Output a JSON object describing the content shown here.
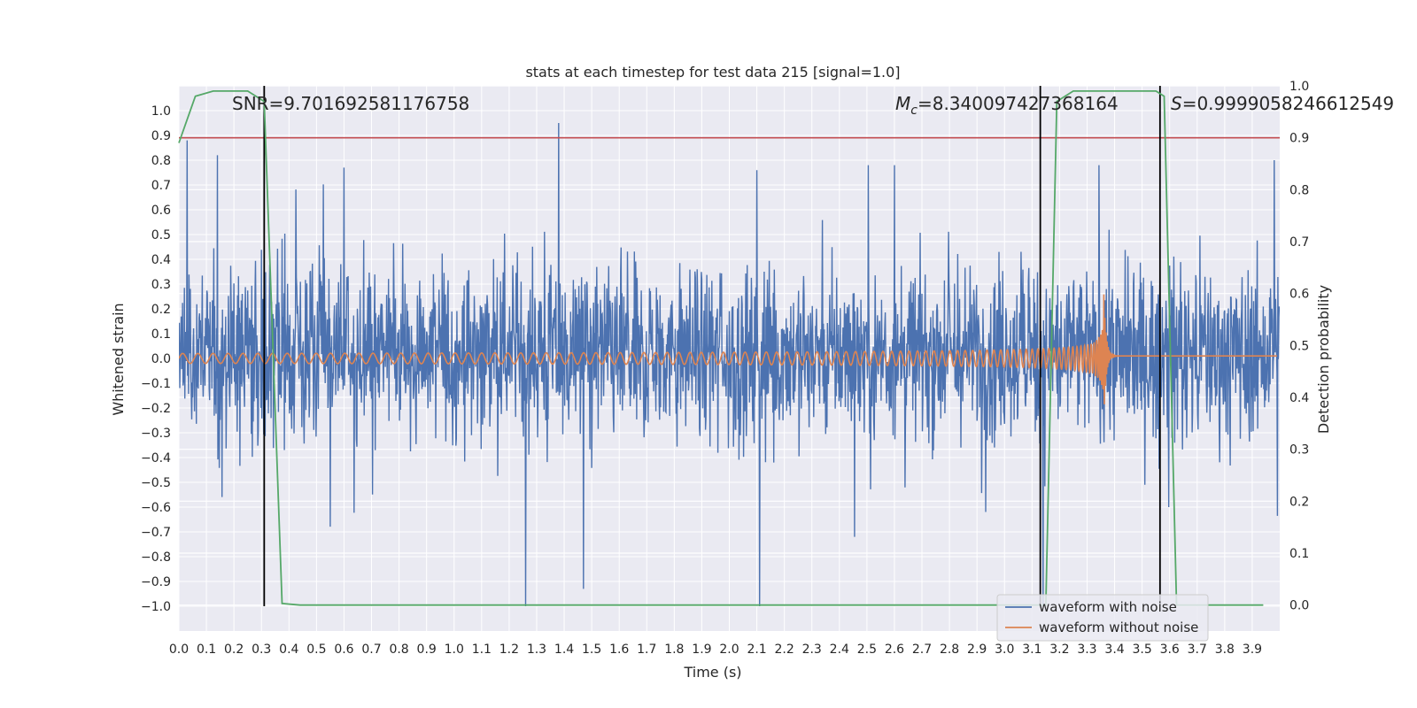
{
  "chart_data": {
    "type": "line",
    "title": "stats at each timestep for test data 215 [signal=1.0]",
    "xlabel": "Time (s)",
    "ylabel": "Whitened strain",
    "ylabel_right": "Detection probability",
    "xlim": [
      0.0,
      4.0
    ],
    "ylim": [
      -1.1,
      1.1
    ],
    "ylim_right": [
      -0.05,
      1.0
    ],
    "xticks": [
      "0.0",
      "0.1",
      "0.2",
      "0.3",
      "0.4",
      "0.5",
      "0.6",
      "0.7",
      "0.8",
      "0.9",
      "1.0",
      "1.1",
      "1.2",
      "1.3",
      "1.4",
      "1.5",
      "1.6",
      "1.7",
      "1.8",
      "1.9",
      "2.0",
      "2.1",
      "2.2",
      "2.3",
      "2.4",
      "2.5",
      "2.6",
      "2.7",
      "2.8",
      "2.9",
      "3.0",
      "3.1",
      "3.2",
      "3.3",
      "3.4",
      "3.5",
      "3.6",
      "3.7",
      "3.8",
      "3.9"
    ],
    "yticks": [
      "1.0",
      "0.9",
      "0.8",
      "0.7",
      "0.6",
      "0.5",
      "0.4",
      "0.3",
      "0.2",
      "0.1",
      "0.0",
      "−0.1",
      "−0.2",
      "−0.3",
      "−0.4",
      "−0.5",
      "−0.6",
      "−0.7",
      "−0.8",
      "−0.9",
      "−1.0"
    ],
    "yticks_right": [
      "1.0",
      "0.9",
      "0.8",
      "0.7",
      "0.6",
      "0.5",
      "0.4",
      "0.3",
      "0.2",
      "0.1",
      "0.0"
    ],
    "annotations": {
      "snr": "SNR=9.701692581176758",
      "mc_symbol": "M",
      "mc_sub": "c",
      "mc_value": "=8.340097427368164",
      "s_symbol": "S",
      "s_value": "=0.9999058246612549"
    },
    "legend": {
      "position": "lower-right",
      "entries": [
        "waveform with noise",
        "waveform without noise"
      ]
    },
    "threshold_right": 0.9,
    "vlines_x": [
      0.31,
      3.13,
      3.565
    ],
    "series": [
      {
        "name": "waveform with noise",
        "color": "#4c72b0",
        "style": "dense noise in approximately [-0.5, 0.6] with spikes",
        "spikes": [
          [
            0.03,
            0.88
          ],
          [
            0.14,
            0.82
          ],
          [
            0.6,
            0.77
          ],
          [
            1.26,
            -1.0
          ],
          [
            1.38,
            0.95
          ],
          [
            1.47,
            -0.93
          ],
          [
            2.11,
            -1.0
          ],
          [
            2.1,
            0.76
          ],
          [
            2.6,
            0.78
          ],
          [
            3.14,
            -1.0
          ],
          [
            3.98,
            0.8
          ]
        ]
      },
      {
        "name": "waveform without noise",
        "color": "#dd8452",
        "style": "chirp: amplitude ~0.02 at t=0 rising to ~0.3 at merger t=3.36, small ringdown after"
      },
      {
        "name": "detection probability",
        "color": "#55a868",
        "axis": "right",
        "x": [
          0.0,
          0.06,
          0.125,
          0.2,
          0.25,
          0.31,
          0.375,
          0.44,
          0.5,
          1.0,
          2.0,
          3.0,
          3.1,
          3.125,
          3.15,
          3.19,
          3.25,
          3.31,
          3.375,
          3.44,
          3.5,
          3.55,
          3.58,
          3.625,
          3.7,
          3.8,
          3.94
        ],
        "y": [
          0.89,
          0.98,
          0.99,
          0.99,
          0.99,
          0.97,
          0.003,
          0.0,
          0.0,
          0.0,
          0.0,
          0.0,
          0.0,
          0.0,
          0.0,
          0.97,
          0.99,
          0.99,
          0.99,
          0.99,
          0.99,
          0.99,
          0.98,
          0.0,
          0.0,
          0.0,
          0.0
        ]
      }
    ]
  }
}
